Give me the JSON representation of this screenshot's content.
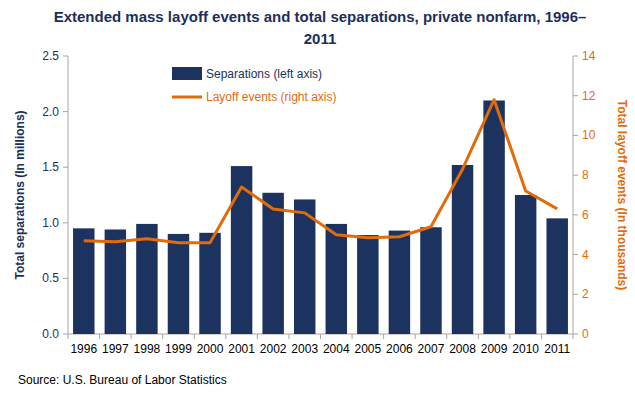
{
  "chart_data": {
    "type": "bar",
    "title": "Extended mass layoff events and total separations, private nonfarm, 1996–2011",
    "source": "Source: U.S. Bureau of Labor Statistics",
    "y_label": "Total separations (In millions)",
    "y2_label": "Total layoff events (In thousands)",
    "categories": [
      "1996",
      "1997",
      "1998",
      "1999",
      "2000",
      "2001",
      "2002",
      "2003",
      "2004",
      "2005",
      "2006",
      "2007",
      "2008",
      "2009",
      "2010",
      "2011"
    ],
    "series": [
      {
        "name": "Separations (left axis)",
        "type": "bar",
        "color": "#1c3360",
        "values": [
          0.95,
          0.94,
          0.99,
          0.9,
          0.91,
          1.51,
          1.27,
          1.21,
          0.99,
          0.89,
          0.93,
          0.96,
          1.52,
          2.1,
          1.25,
          1.04
        ]
      },
      {
        "name": "Layoff events (right axis)",
        "type": "line",
        "color": "#e36c0a",
        "axis": "y2",
        "values": [
          4.7,
          4.65,
          4.8,
          4.6,
          4.6,
          7.4,
          6.3,
          6.1,
          5.0,
          4.85,
          4.9,
          5.4,
          8.3,
          11.8,
          7.2,
          6.3
        ]
      }
    ],
    "ylim": [
      0,
      2.5
    ],
    "yticks": [
      {
        "value": 0,
        "label": "0.0"
      },
      0.5,
      {
        "value": 1,
        "label": "1.0"
      },
      1.5,
      {
        "value": 2,
        "label": "2.0"
      },
      2.5
    ],
    "y2lim": [
      0,
      14
    ],
    "y2ticks": [
      0,
      2,
      4,
      6,
      8,
      10,
      12,
      14
    ],
    "grid": false,
    "legend": "top-left"
  }
}
